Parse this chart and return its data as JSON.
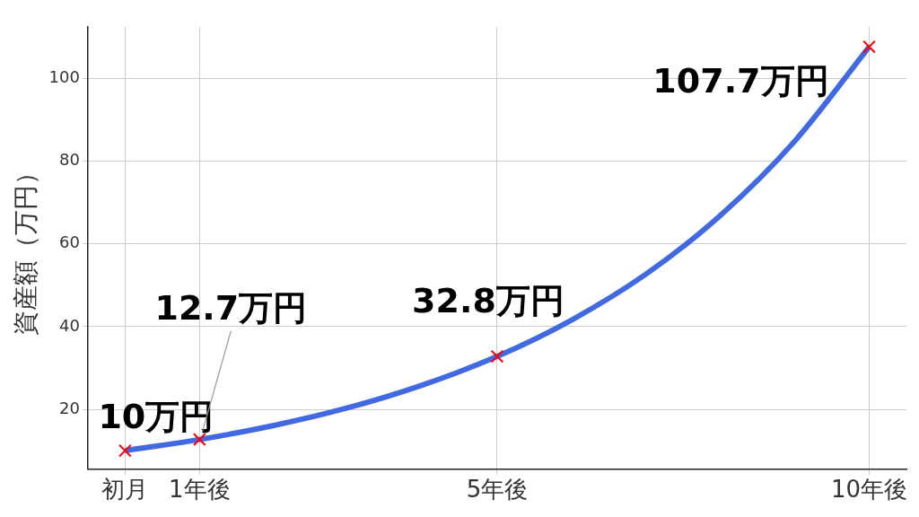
{
  "chart_data": {
    "type": "line",
    "ylabel": "資産額（万円）",
    "xlim": [
      -0.5,
      10.5
    ],
    "xticks": [
      {
        "value": 0,
        "label": "初月"
      },
      {
        "value": 1,
        "label": "1年後"
      },
      {
        "value": 5,
        "label": "5年後"
      },
      {
        "value": 10,
        "label": "10年後"
      }
    ],
    "ylim": [
      5.5,
      112.5
    ],
    "yticks": [
      20,
      40,
      60,
      80,
      100
    ],
    "grid": true,
    "legend": false,
    "series": [
      {
        "type": "line",
        "color": "#4169e1",
        "x": [
          0,
          1,
          2,
          3,
          4,
          5,
          6,
          7,
          8,
          9,
          10
        ],
        "values": [
          10,
          12.7,
          16.1,
          20.4,
          25.9,
          32.8,
          41.6,
          52.7,
          66.9,
          84.9,
          107.7
        ]
      },
      {
        "type": "scatter",
        "marker": "cross",
        "color": "#ff0000",
        "x": [
          0,
          1,
          5,
          10
        ],
        "values": [
          10,
          12.7,
          32.8,
          107.7
        ],
        "value_labels": [
          "10万円",
          "12.7万円",
          "32.8万円",
          "107.7万円"
        ]
      }
    ]
  }
}
